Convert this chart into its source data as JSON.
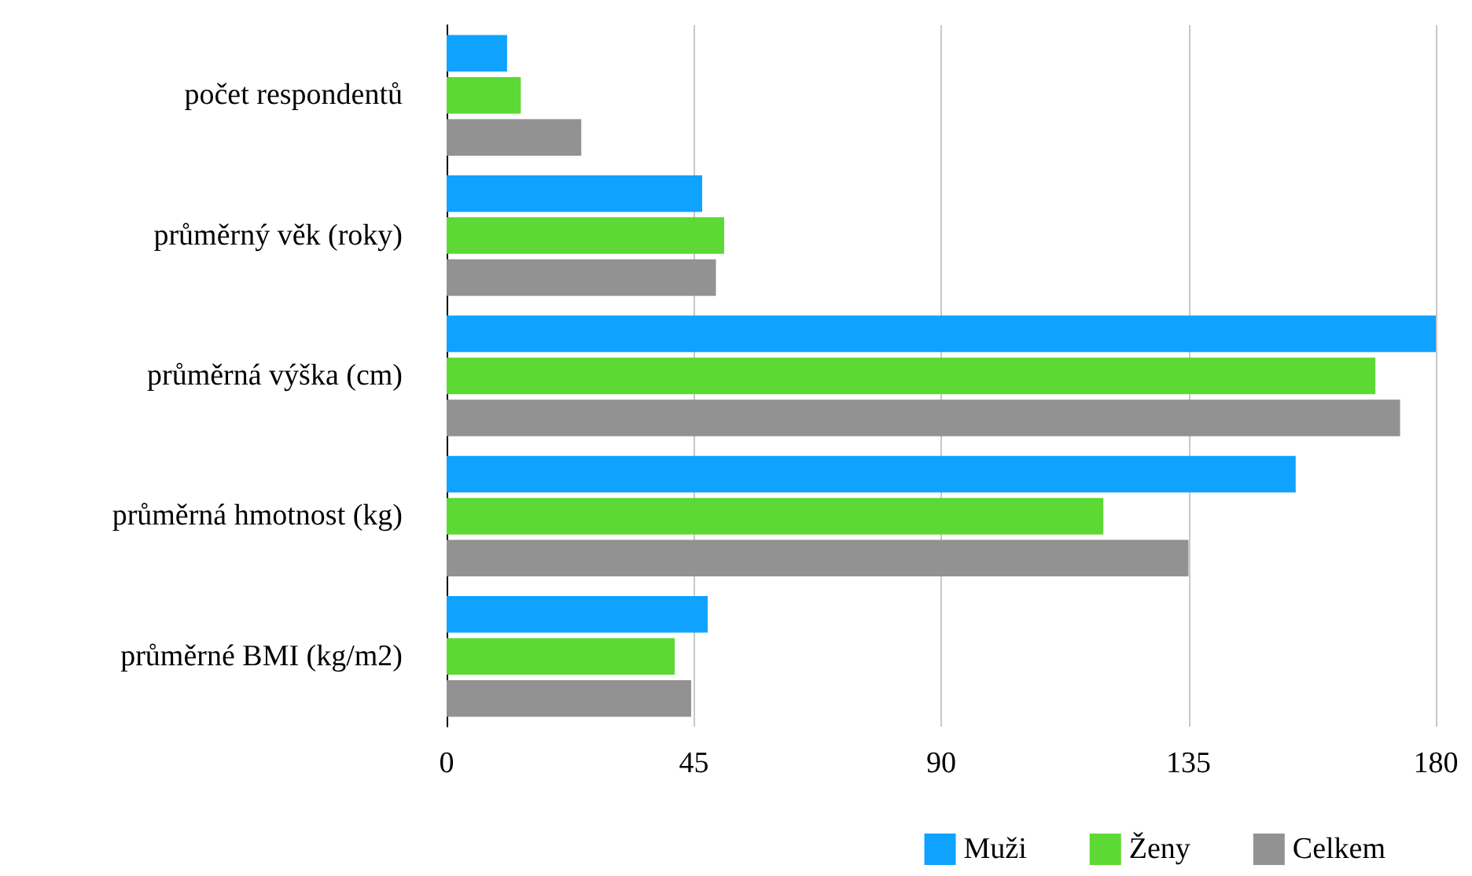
{
  "chart_data": {
    "type": "bar",
    "orientation": "horizontal",
    "categories": [
      "počet respondentů",
      "průměrný věk (roky)",
      "průměrná výška (cm)",
      "průměrná hmotnost (kg)",
      "průměrné BMI (kg/m2)"
    ],
    "series": [
      {
        "name": "Muži",
        "color": "#0fa3ff",
        "values": [
          11,
          46.5,
          180,
          154.5,
          47.5
        ]
      },
      {
        "name": "Ženy",
        "color": "#5cd934",
        "values": [
          13.5,
          50.5,
          169,
          119.5,
          41.5
        ]
      },
      {
        "name": "Celkem",
        "color": "#929292",
        "values": [
          24.5,
          49,
          173.5,
          135,
          44.5
        ]
      }
    ],
    "xlim": [
      0,
      180
    ],
    "xticks": [
      0,
      45,
      90,
      135,
      180
    ],
    "grid": "x",
    "legend": "bottom right"
  }
}
